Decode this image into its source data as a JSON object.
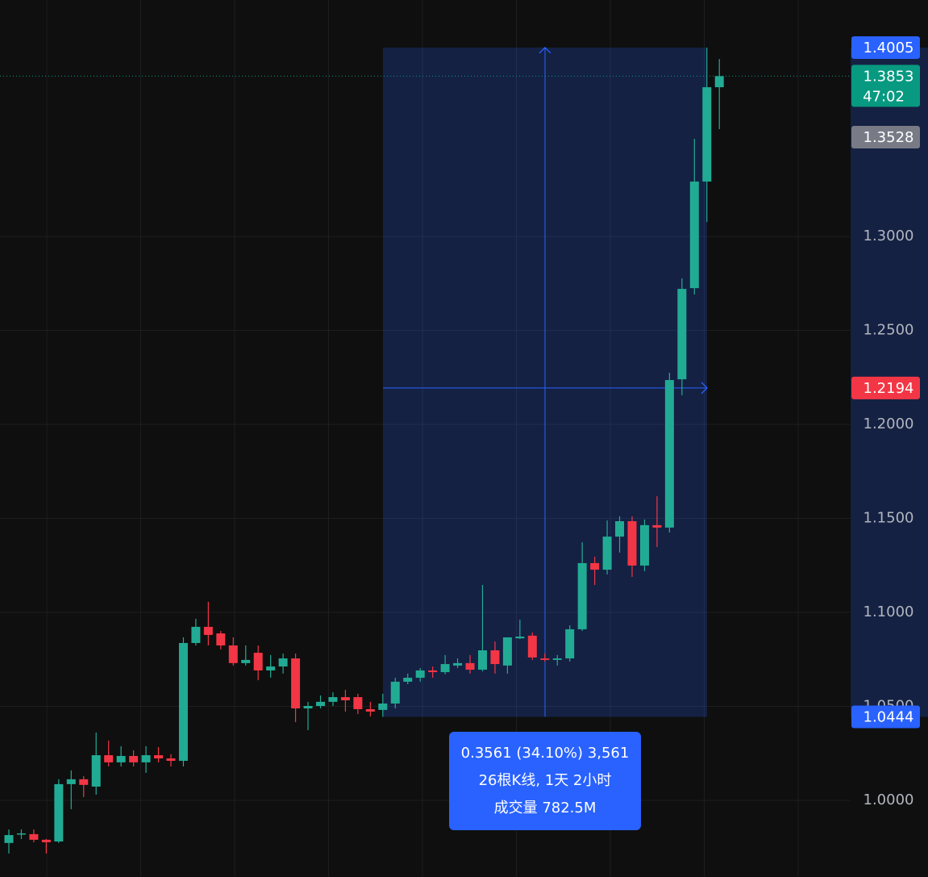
{
  "chart_data": {
    "type": "candlestick",
    "colors": {
      "up": "#22ab94",
      "down": "#f23645"
    },
    "open": [
      0.9773,
      0.982,
      0.982,
      0.979,
      0.9781,
      1.0086,
      1.0112,
      1.0073,
      1.024,
      1.0202,
      1.0236,
      1.0202,
      1.024,
      1.0223,
      1.021,
      1.0837,
      1.0923,
      1.0888,
      1.0824,
      1.073,
      1.0785,
      1.0691,
      1.0712,
      1.0755,
      1.0489,
      1.0502,
      1.0524,
      1.0549,
      1.0549,
      1.0485,
      1.0481,
      1.0515,
      1.0631,
      1.0652,
      1.0691,
      1.0682,
      1.0717,
      1.073,
      1.0695,
      1.0798,
      1.0717,
      1.0862,
      1.0876,
      1.0755,
      1.0747,
      1.0755,
      1.091,
      1.1262,
      1.1227,
      1.1403,
      1.1485,
      1.1249,
      1.1464,
      1.1451,
      1.224,
      1.2725,
      1.3292,
      1.3794
    ],
    "high": [
      0.9845,
      0.9845,
      0.9845,
      0.9794,
      1.0112,
      1.0159,
      1.0129,
      1.0361,
      1.0318,
      1.0288,
      1.0266,
      1.0288,
      1.0283,
      1.0245,
      1.0867,
      1.0966,
      1.1056,
      1.0901,
      1.0867,
      1.0824,
      1.0824,
      1.0773,
      1.0781,
      1.0781,
      1.0524,
      1.0558,
      1.0575,
      1.0588,
      1.0567,
      1.0524,
      1.0567,
      1.0652,
      1.0674,
      1.0704,
      1.0712,
      1.0773,
      1.0755,
      1.0773,
      1.1146,
      1.0845,
      1.0867,
      1.0961,
      1.0893,
      1.0781,
      1.0773,
      1.0931,
      1.1373,
      1.1296,
      1.1489,
      1.1511,
      1.1511,
      1.1494,
      1.1618,
      1.2275,
      1.2777,
      1.3519,
      1.4005,
      1.3944
    ],
    "low": [
      0.9717,
      0.9794,
      0.9777,
      0.9717,
      0.9773,
      0.9953,
      1.0017,
      1.003,
      1.018,
      1.018,
      1.018,
      1.0146,
      1.0202,
      1.018,
      1.018,
      1.0824,
      1.0824,
      1.0803,
      1.0717,
      1.0717,
      1.0639,
      1.0652,
      1.0674,
      1.0416,
      1.0373,
      1.0489,
      1.0502,
      1.0472,
      1.0459,
      1.0446,
      1.0444,
      1.0489,
      1.0618,
      1.0631,
      1.0652,
      1.067,
      1.0704,
      1.0674,
      1.0686,
      1.0674,
      1.0674,
      1.0858,
      1.0747,
      1.0738,
      1.0717,
      1.0738,
      1.0901,
      1.1146,
      1.1202,
      1.1318,
      1.1189,
      1.1219,
      1.1348,
      1.1425,
      1.2155,
      1.2691,
      1.3077,
      1.3571
    ],
    "close": [
      0.9815,
      0.9824,
      0.979,
      0.9777,
      1.0086,
      1.0112,
      1.0082,
      1.024,
      1.0202,
      1.0236,
      1.0202,
      1.024,
      1.0223,
      1.021,
      1.0837,
      1.0923,
      1.088,
      1.0824,
      1.073,
      1.0747,
      1.0691,
      1.0712,
      1.0755,
      1.0489,
      1.0502,
      1.0524,
      1.0549,
      1.0532,
      1.0485,
      1.0472,
      1.0515,
      1.0631,
      1.0652,
      1.0691,
      1.0682,
      1.0725,
      1.073,
      1.0695,
      1.0798,
      1.0725,
      1.0867,
      1.0871,
      1.076,
      1.0747,
      1.0755,
      1.091,
      1.1262,
      1.1227,
      1.1403,
      1.1485,
      1.1249,
      1.1464,
      1.1451,
      1.2236,
      1.2721,
      1.3292,
      1.3794,
      1.3853
    ],
    "ylim": [
      0.9592,
      1.4258
    ],
    "yticks": [
      {
        "value": 1.0,
        "label": "1.0000"
      },
      {
        "value": 1.05,
        "label": "1.0500"
      },
      {
        "value": 1.1,
        "label": "1.1000"
      },
      {
        "value": 1.15,
        "label": "1.1500"
      },
      {
        "value": 1.2,
        "label": "1.2000"
      },
      {
        "value": 1.25,
        "label": "1.2500"
      },
      {
        "value": 1.3,
        "label": "1.3000"
      }
    ],
    "grid": true,
    "measure": {
      "high": 1.4005,
      "low": 1.0444,
      "tooltip": [
        "0.3561 (34.10%) 3,561",
        "26根K线, 1天 2小时",
        "成交量 782.5M"
      ]
    },
    "last_price": {
      "value": 1.3853,
      "countdown": "47:02",
      "color": "#089981"
    },
    "marker_price": {
      "value": 1.3528,
      "color": "#787b86"
    },
    "crosshair_price": {
      "value": 1.2194,
      "color": "#f23645"
    }
  }
}
